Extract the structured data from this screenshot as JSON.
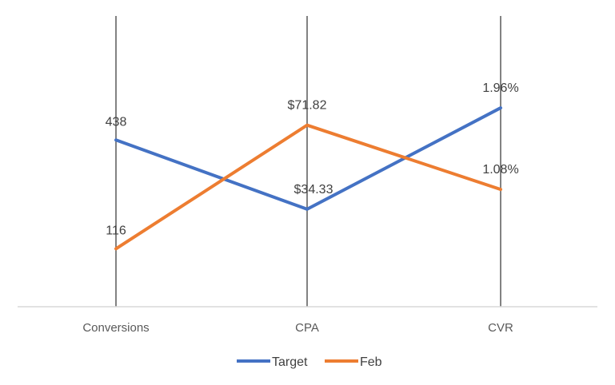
{
  "chart_data": {
    "type": "line",
    "categories": [
      "Conversions",
      "CPA",
      "CVR"
    ],
    "series": [
      {
        "name": "Target",
        "color": "#4472C4",
        "values": [
          0.61,
          0.33,
          0.74
        ],
        "labels": [
          "438",
          "$34.33",
          "1.96%"
        ]
      },
      {
        "name": "Feb",
        "color": "#ED7D31",
        "values": [
          0.17,
          0.67,
          0.41
        ],
        "labels": [
          "116",
          "$71.82",
          "1.08%"
        ]
      }
    ],
    "value_note": "Each category is plotted on its own scale; values are the relative height (0 to 1) at which each point is drawn.",
    "ylim": [
      0,
      1
    ],
    "legend": "bottom",
    "grid": false,
    "category_lines": true
  }
}
